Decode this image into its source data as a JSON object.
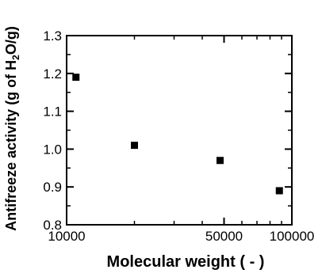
{
  "chart_data": {
    "type": "scatter",
    "title": "",
    "xlabel": "Molecular weight ( - )",
    "ylabel_main": "Antifreeze activity (g of H",
    "ylabel_sub": "2",
    "ylabel_end": "O/g)",
    "x_scale": "log",
    "xlim": [
      10000,
      100000
    ],
    "ylim": [
      0.8,
      1.3
    ],
    "x_ticks": [
      10000,
      50000,
      100000
    ],
    "x_tick_labels": [
      "10000",
      "50000",
      "100000"
    ],
    "y_ticks": [
      0.8,
      0.9,
      1.0,
      1.1,
      1.2,
      1.3
    ],
    "y_tick_labels": [
      "0.8",
      "0.9",
      "1.0",
      "1.1",
      "1.2",
      "1.3"
    ],
    "grid": false,
    "legend": "none",
    "marker": "square",
    "marker_color": "#000000",
    "series": [
      {
        "x": [
          11000,
          20000,
          48000,
          88000
        ],
        "y": [
          1.19,
          1.01,
          0.97,
          0.89
        ]
      }
    ]
  }
}
